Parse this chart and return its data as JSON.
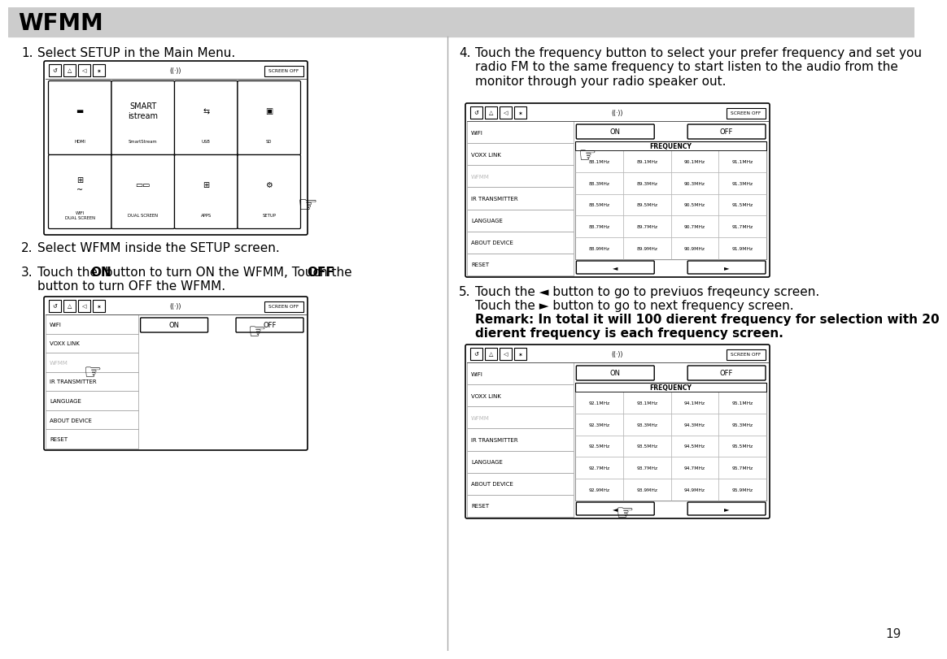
{
  "title": "WFMM",
  "title_bg": "#cccccc",
  "page_bg": "#ffffff",
  "page_number": "19",
  "menu_items": [
    "WIFI",
    "VOXX LINK",
    "WFMM",
    "IR TRANSMITTER",
    "LANGUAGE",
    "ABOUT DEVICE",
    "RESET"
  ],
  "wfmm_item_index": 2,
  "freq_rows_1": [
    [
      "88.1MHz",
      "89.1MHz",
      "90.1MHz",
      "91.1MHz"
    ],
    [
      "88.3MHz",
      "89.3MHz",
      "90.3MHz",
      "91.3MHz"
    ],
    [
      "88.5MHz",
      "89.5MHz",
      "90.5MHz",
      "91.5MHz"
    ],
    [
      "88.7MHz",
      "89.7MHz",
      "90.7MHz",
      "91.7MHz"
    ],
    [
      "88.9MHz",
      "89.9MHz",
      "90.9MHz",
      "91.9MHz"
    ]
  ],
  "freq_rows_2": [
    [
      "92.1MHz",
      "93.1MHz",
      "94.1MHz",
      "95.1MHz"
    ],
    [
      "92.3MHz",
      "93.3MHz",
      "94.3MHz",
      "95.3MHz"
    ],
    [
      "92.5MHz",
      "93.5MHz",
      "94.5MHz",
      "95.5MHz"
    ],
    [
      "92.7MHz",
      "93.7MHz",
      "94.7MHz",
      "95.7MHz"
    ],
    [
      "92.9MHz",
      "93.9MHz",
      "94.9MHz",
      "95.9MHz"
    ]
  ],
  "step1_text": "Select SETUP in the Main Menu.",
  "step2_text": "Select WFMM inside the SETUP screen.",
  "step3_pre": "Touch the ",
  "step3_on": "ON",
  "step3_mid": " button to turn ON the WFMM, Touch the ",
  "step3_off": "OFF",
  "step3_post": "\nbutton to turn OFF the WFMM.",
  "step4_text": "Touch the frequency button to select your prefer frequency and set you\nradio FM to the same frequency to start listen to the audio from the\nmonitor through your radio speaker out.",
  "step5_line1": "Touch the ◄ button to go to previuos freqeuncy screen.",
  "step5_line2": "Touch the ► button to go to next frequency screen.",
  "step5_remark1": "Remark: In total it will 100 dierent frequency for selection with 20",
  "step5_remark2": "dierent frequency is each frequency screen.",
  "main_menu_row1_labels": [
    "HDMI",
    "SmartStream",
    "USB",
    "SD"
  ],
  "main_menu_row2_labels": [
    "WIFI\nDUAL SCREEN",
    "DUAL SCREEN",
    "APPS",
    "SETUP"
  ],
  "screen_off_label": "SCREEN OFF",
  "on_label": "ON",
  "off_label": "OFF",
  "freq_label": "FREQUENCY"
}
